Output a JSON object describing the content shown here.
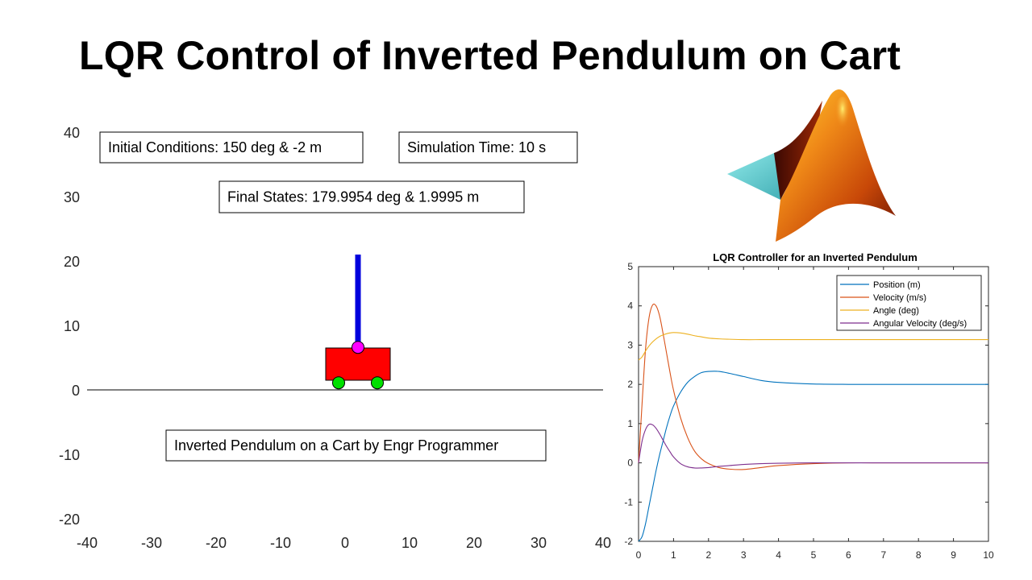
{
  "slide": {
    "title": "LQR Control of Inverted Pendulum on Cart"
  },
  "annotations": {
    "initial_conditions": "Initial Conditions: 150 deg  & -2 m",
    "simulation_time": "Simulation Time: 10 s",
    "final_states": "Final States: 179.9954 deg  & 1.9995 m",
    "credit": "Inverted Pendulum on a Cart by Engr Programmer"
  },
  "logo": {
    "name": "matlab-membrane-logo",
    "colors": {
      "teal": "#6fd0d0",
      "orange": "#e06010",
      "deep": "#7a1a05",
      "highlight": "#ffd030"
    }
  },
  "chart_data": [
    {
      "type": "scatter",
      "description_role": "cart-pendulum animation axes",
      "title": "",
      "xlabel": "",
      "ylabel": "",
      "xlim": [
        -40,
        40
      ],
      "ylim": [
        -20,
        40
      ],
      "xticks": [
        -40,
        -30,
        -20,
        -10,
        0,
        10,
        20,
        30,
        40
      ],
      "yticks": [
        -20,
        -10,
        0,
        10,
        20,
        30,
        40
      ],
      "ground_y": 0,
      "cart": {
        "x_min": -3,
        "x_max": 7,
        "y_min": 1.5,
        "y_max": 6.5,
        "color": "#ff0000"
      },
      "wheels": [
        {
          "x": -1,
          "y": 1.1
        },
        {
          "x": 5,
          "y": 1.1
        }
      ],
      "wheel_color": "#00e000",
      "pivot": {
        "x": 2,
        "y": 6.6,
        "color": "#ff00ff"
      },
      "pendulum_tip": {
        "x": 2,
        "y": 21
      },
      "pendulum_color": "#0000dd"
    },
    {
      "type": "line",
      "title": "LQR Controller for an Inverted Pendulum",
      "xlabel": "",
      "ylabel": "",
      "xlim": [
        0,
        10
      ],
      "ylim": [
        -2,
        5
      ],
      "xticks": [
        0,
        1,
        2,
        3,
        4,
        5,
        6,
        7,
        8,
        9,
        10
      ],
      "yticks": [
        -2,
        -1,
        0,
        1,
        2,
        3,
        4,
        5
      ],
      "legend_position": "top-right",
      "x": [
        0,
        0.1,
        0.2,
        0.3,
        0.4,
        0.5,
        0.6,
        0.7,
        0.8,
        0.9,
        1.0,
        1.2,
        1.4,
        1.6,
        1.8,
        2.0,
        2.3,
        2.6,
        3.0,
        3.5,
        4.0,
        5.0,
        6.0,
        7.0,
        8.0,
        9.0,
        10.0
      ],
      "series": [
        {
          "name": "Position (m)",
          "color": "#0072bd",
          "values": [
            -2.0,
            -1.88,
            -1.55,
            -1.1,
            -0.65,
            -0.2,
            0.2,
            0.55,
            0.9,
            1.2,
            1.45,
            1.8,
            2.05,
            2.2,
            2.3,
            2.33,
            2.33,
            2.28,
            2.2,
            2.1,
            2.05,
            2.01,
            2.0,
            2.0,
            2.0,
            2.0,
            2.0
          ]
        },
        {
          "name": "Velocity (m/s)",
          "color": "#d95319",
          "values": [
            0.0,
            1.5,
            2.9,
            3.7,
            4.02,
            4.0,
            3.75,
            3.3,
            2.8,
            2.3,
            1.85,
            1.15,
            0.65,
            0.3,
            0.1,
            -0.02,
            -0.12,
            -0.16,
            -0.17,
            -0.12,
            -0.07,
            -0.02,
            0.0,
            0.0,
            0.0,
            0.0,
            0.0
          ]
        },
        {
          "name": "Angle (deg)",
          "color": "#edb120",
          "values": [
            2.62,
            2.7,
            2.85,
            2.98,
            3.08,
            3.16,
            3.22,
            3.26,
            3.29,
            3.31,
            3.32,
            3.31,
            3.28,
            3.24,
            3.21,
            3.18,
            3.16,
            3.15,
            3.14,
            3.14,
            3.14,
            3.14,
            3.14,
            3.14,
            3.14,
            3.14,
            3.14
          ]
        },
        {
          "name": "Angular Velocity (deg/s)",
          "color": "#7e2f8e",
          "values": [
            0.0,
            0.55,
            0.85,
            0.98,
            0.97,
            0.88,
            0.74,
            0.58,
            0.42,
            0.28,
            0.15,
            -0.02,
            -0.1,
            -0.13,
            -0.13,
            -0.12,
            -0.09,
            -0.07,
            -0.04,
            -0.02,
            -0.01,
            0.0,
            0.0,
            0.0,
            0.0,
            0.0,
            0.0
          ]
        }
      ]
    }
  ]
}
